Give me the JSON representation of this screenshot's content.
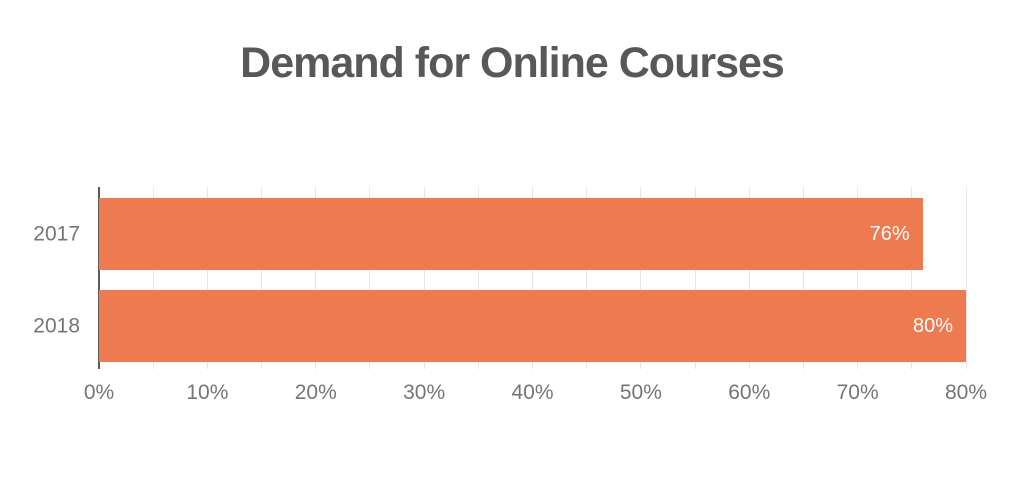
{
  "page": {
    "background": "#ffffff"
  },
  "chart_data": {
    "type": "bar",
    "orientation": "horizontal",
    "title": "Demand for Online Courses",
    "categories": [
      "2017",
      "2018"
    ],
    "values": [
      76,
      80
    ],
    "value_labels": [
      "76%",
      "80%"
    ],
    "xlabel": "",
    "ylabel": "",
    "xlim": [
      0,
      80
    ],
    "x_tick_values": [
      0,
      10,
      20,
      30,
      40,
      50,
      60,
      70,
      80
    ],
    "x_tick_labels": [
      "0%",
      "10%",
      "20%",
      "30%",
      "40%",
      "50%",
      "60%",
      "70%",
      "80%"
    ],
    "minor_gridline_step": 5,
    "grid": true,
    "legend_position": "none",
    "colors": {
      "bar": "#EE7A50",
      "title": "#58585B",
      "axis_line": "#5B5B5D",
      "gridline": "#E6E6E6",
      "tick_label": "#757575",
      "category_label": "#757575",
      "value_label": "#FFFFFF",
      "background": "#FFFFFF"
    }
  }
}
